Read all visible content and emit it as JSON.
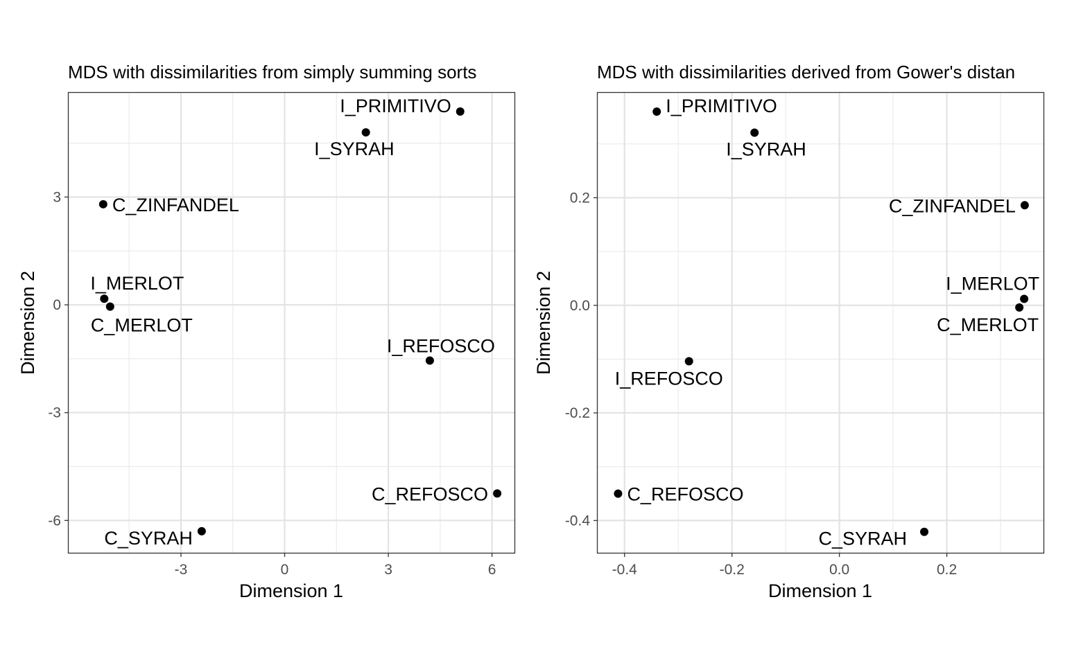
{
  "chart_data": [
    {
      "type": "scatter",
      "title": "MDS with dissimilarities from simply summing sorts",
      "xlabel": "Dimension 1",
      "ylabel": "Dimension 2",
      "xlim": [
        -6.25,
        6.65
      ],
      "ylim": [
        -6.9,
        5.9
      ],
      "xticks": [
        -3,
        0,
        3,
        6
      ],
      "xtick_labels": [
        "-3",
        "0",
        "3",
        "6"
      ],
      "yticks": [
        -6,
        -3,
        0,
        3
      ],
      "ytick_labels": [
        "-6",
        "-3",
        "0",
        "3"
      ],
      "grid": true,
      "points": [
        {
          "label": "I_PRIMITIVO",
          "x": 5.08,
          "y": 5.38
        },
        {
          "label": "I_SYRAH",
          "x": 2.35,
          "y": 4.8
        },
        {
          "label": "C_ZINFANDEL",
          "x": -5.25,
          "y": 2.8
        },
        {
          "label": "I_MERLOT",
          "x": -5.22,
          "y": 0.17
        },
        {
          "label": "C_MERLOT",
          "x": -5.05,
          "y": -0.05
        },
        {
          "label": "I_REFOSCO",
          "x": 4.2,
          "y": -1.55
        },
        {
          "label": "C_REFOSCO",
          "x": 6.15,
          "y": -5.25
        },
        {
          "label": "C_SYRAH",
          "x": -2.4,
          "y": -6.3
        }
      ]
    },
    {
      "type": "scatter",
      "title": "MDS with dissimilarities derived from Gower's distan",
      "xlabel": "Dimension 1",
      "ylabel": "Dimension 2",
      "xlim": [
        -0.45,
        0.38
      ],
      "ylim": [
        -0.46,
        0.395
      ],
      "xticks": [
        -0.4,
        -0.2,
        0.0,
        0.2
      ],
      "xtick_labels": [
        "-0.4",
        "-0.2",
        "0.0",
        "0.2"
      ],
      "yticks": [
        -0.4,
        -0.2,
        0.0,
        0.2
      ],
      "ytick_labels": [
        "-0.4",
        "-0.2",
        "0.0",
        "0.2"
      ],
      "grid": true,
      "points": [
        {
          "label": "I_PRIMITIVO",
          "x": -0.34,
          "y": 0.36
        },
        {
          "label": "I_SYRAH",
          "x": -0.158,
          "y": 0.321
        },
        {
          "label": "C_ZINFANDEL",
          "x": 0.345,
          "y": 0.186
        },
        {
          "label": "I_MERLOT",
          "x": 0.344,
          "y": 0.012
        },
        {
          "label": "C_MERLOT",
          "x": 0.335,
          "y": -0.004
        },
        {
          "label": "I_REFOSCO",
          "x": -0.28,
          "y": -0.104
        },
        {
          "label": "C_REFOSCO",
          "x": -0.412,
          "y": -0.35
        },
        {
          "label": "C_SYRAH",
          "x": 0.158,
          "y": -0.421
        }
      ]
    }
  ]
}
